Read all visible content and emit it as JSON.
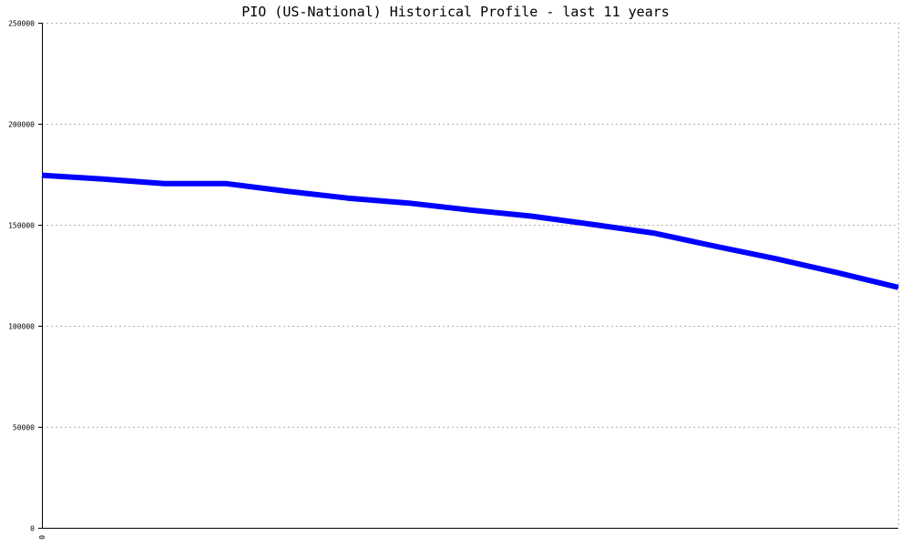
{
  "chart_data": {
    "type": "line",
    "title": "PIO (US-National) Historical Profile - last 11 years",
    "xlabel": "",
    "ylabel": "",
    "ylim": [
      0,
      250000
    ],
    "yticks": [
      0,
      50000,
      100000,
      150000,
      200000,
      250000
    ],
    "ytick_labels": [
      "0",
      "50000",
      "100000",
      "150000",
      "200000",
      "250000"
    ],
    "xtick_labels": [
      "0"
    ],
    "grid": true,
    "legend": "none",
    "series": [
      {
        "color": "#0000ff",
        "values": [
          174500,
          172600,
          170400,
          170400,
          166600,
          163200,
          160700,
          157300,
          154300,
          150200,
          145900,
          139400,
          133200,
          126300,
          119000
        ]
      }
    ]
  }
}
